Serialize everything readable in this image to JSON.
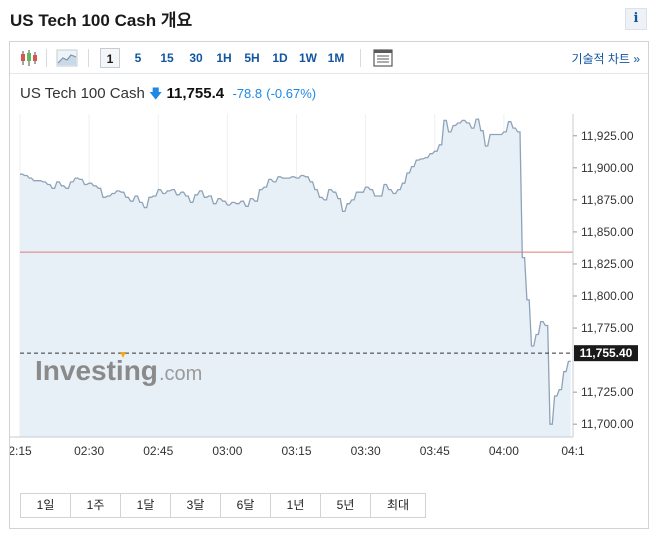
{
  "header": {
    "title": "US Tech 100 Cash 개요",
    "info_label": "i"
  },
  "toolbar": {
    "timeframes": [
      {
        "label": "1",
        "active": true
      },
      {
        "label": "5"
      },
      {
        "label": "15"
      },
      {
        "label": "30"
      },
      {
        "label": "1H"
      },
      {
        "label": "5H"
      },
      {
        "label": "1D"
      },
      {
        "label": "1W"
      },
      {
        "label": "1M"
      }
    ],
    "tech_chart_label": "기술적 차트 »",
    "icons": [
      "candlestick-icon",
      "area-chart-icon",
      "table-view-icon"
    ]
  },
  "quote": {
    "name": "US Tech 100 Cash",
    "direction_arrow": "🡇",
    "price": "11,755.4",
    "change": "-78.8",
    "change_pct": "(-0.67%)"
  },
  "watermark": {
    "brand": "Investing",
    "suffix": ".com"
  },
  "colors": {
    "accent": "#1256a0",
    "negative": "#1e88e5",
    "fill": "#e8f0f7",
    "line": "#8ea3b8",
    "prev_close": "#e07a7a"
  },
  "range_buttons": [
    "1일",
    "1주",
    "1달",
    "3달",
    "6달",
    "1년",
    "5년",
    "최대"
  ],
  "chart_data": {
    "type": "area",
    "x_ticks": [
      "2:15",
      "02:30",
      "02:45",
      "03:00",
      "03:15",
      "03:30",
      "03:45",
      "04:00",
      "04:1"
    ],
    "y_ticks": [
      "11,925.00",
      "11,900.00",
      "11,875.00",
      "11,850.00",
      "11,825.00",
      "11,800.00",
      "11,775.00",
      "11,725.00",
      "11,700.00"
    ],
    "ylim": [
      11690,
      11942
    ],
    "current_price_label": "11,755.40",
    "current_price": 11755.4,
    "previous_close": 11834.2,
    "x": [
      0,
      0.5,
      1,
      1.5,
      2,
      2.5,
      3,
      3.5,
      4,
      4.5,
      5,
      5.5,
      6,
      6.5,
      7,
      7.5,
      8,
      8.5,
      9,
      9.5,
      10,
      10.5,
      11,
      11.5,
      12,
      12.5,
      13,
      13.5,
      14,
      14.5,
      15,
      15.5,
      16,
      16.5,
      17,
      17.5,
      18,
      18.5,
      19,
      19.5,
      20,
      20.5,
      21,
      21.5,
      22,
      22.5,
      23,
      23.5,
      24,
      24.5,
      25,
      25.5,
      26,
      26.5,
      27,
      27.5,
      28,
      28.5,
      29,
      29.5,
      30,
      30.5,
      31,
      31.5,
      32,
      32.5,
      33,
      33.5,
      34,
      34.5,
      35,
      35.5,
      36,
      36.5,
      37,
      37.5,
      38,
      38.5,
      39,
      39.5,
      40,
      40.5,
      41,
      41.5,
      42,
      42.5,
      43,
      43.5,
      44,
      44.5,
      45,
      45.5,
      46,
      46.5,
      47,
      47.5,
      48,
      48.5,
      49,
      49.5,
      50,
      50.5,
      51,
      51.5,
      52,
      52.5,
      53,
      53.5,
      54,
      54.5,
      55,
      55.5,
      56,
      56.5,
      57,
      57.5,
      58,
      58.5,
      59,
      59.5,
      60,
      60.5,
      61,
      61.5,
      62,
      62.5,
      63,
      63.5,
      64,
      64.5,
      65,
      65.5,
      66,
      66.5,
      67,
      67.5,
      68,
      68.5,
      69,
      69.5,
      70,
      70.5,
      71,
      71.5,
      72,
      72.5,
      73,
      73.5,
      74,
      74.5,
      75,
      75.5,
      76,
      76.5,
      77,
      77.5,
      78,
      78.5,
      79,
      79.5,
      80,
      80.5,
      81,
      81.5,
      82,
      82.5,
      83,
      83.5,
      84,
      84.5,
      85,
      85.5,
      86,
      86.5,
      87,
      87.5,
      88,
      88.5,
      89,
      89.5,
      90,
      90.5,
      91,
      91.5,
      92,
      92.5,
      93,
      93.5,
      94,
      94.5,
      95,
      95.5,
      96,
      96.5,
      97,
      97.5,
      98,
      98.5,
      99,
      99.5,
      100,
      100.5,
      101,
      101.5,
      102,
      102.5,
      103,
      103.5,
      104,
      104.5,
      105,
      105.5,
      106,
      106.5,
      107,
      107.5,
      108,
      108.5,
      109,
      109.5,
      110,
      110.5,
      111,
      111.5,
      112,
      112.5,
      113,
      113.5,
      114,
      114.5,
      115,
      115.5,
      116,
      116.5,
      117,
      117.5,
      118,
      118.5,
      119,
      119.5
    ],
    "y": [
      11895,
      11895,
      11894,
      11894,
      11892,
      11892,
      11890,
      11890,
      11890,
      11890,
      11889,
      11889,
      11887,
      11887,
      11884,
      11884,
      11889,
      11889,
      11886,
      11886,
      11884,
      11884,
      11889,
      11889,
      11892,
      11892,
      11891,
      11891,
      11887,
      11887,
      11888,
      11888,
      11886,
      11886,
      11884,
      11884,
      11877,
      11877,
      11878,
      11878,
      11880,
      11880,
      11882,
      11882,
      11881,
      11881,
      11877,
      11877,
      11874,
      11874,
      11878,
      11878,
      11873,
      11873,
      11869,
      11869,
      11877,
      11877,
      11878,
      11878,
      11883,
      11883,
      11880,
      11880,
      11882,
      11882,
      11883,
      11883,
      11879,
      11879,
      11881,
      11881,
      11878,
      11878,
      11873,
      11873,
      11879,
      11879,
      11882,
      11882,
      11877,
      11877,
      11878,
      11878,
      11872,
      11872,
      11876,
      11876,
      11874,
      11874,
      11871,
      11871,
      11873,
      11873,
      11872,
      11872,
      11874,
      11874,
      11870,
      11870,
      11876,
      11876,
      11874,
      11874,
      11883,
      11883,
      11885,
      11885,
      11891,
      11891,
      11889,
      11889,
      11893,
      11893,
      11892,
      11892,
      11892,
      11892,
      11893,
      11893,
      11892,
      11892,
      11894,
      11894,
      11893,
      11893,
      11889,
      11889,
      11883,
      11883,
      11877,
      11877,
      11875,
      11875,
      11883,
      11883,
      11881,
      11881,
      11876,
      11876,
      11866,
      11866,
      11872,
      11872,
      11875,
      11875,
      11881,
      11881,
      11881,
      11881,
      11885,
      11885,
      11883,
      11883,
      11878,
      11878,
      11878,
      11878,
      11887,
      11887,
      11883,
      11883,
      11880,
      11880,
      11883,
      11883,
      11888,
      11888,
      11896,
      11896,
      11901,
      11901,
      11906,
      11906,
      11907,
      11907,
      11908,
      11908,
      11911,
      11911,
      11913,
      11913,
      11918,
      11918,
      11937,
      11937,
      11928,
      11928,
      11933,
      11933,
      11935,
      11935,
      11937,
      11937,
      11935,
      11935,
      11931,
      11931,
      11938,
      11938,
      11929,
      11929,
      11917,
      11917,
      11926,
      11926,
      11926,
      11926,
      11926,
      11926,
      11928,
      11928,
      11936,
      11936,
      11931,
      11931,
      11928,
      11928,
      11830,
      11830,
      11797,
      11797,
      11761,
      11761,
      11770,
      11770,
      11780,
      11780,
      11777,
      11777,
      11700,
      11700,
      11722,
      11722,
      11727,
      11727,
      11741,
      11741,
      11749,
      11749
    ]
  }
}
